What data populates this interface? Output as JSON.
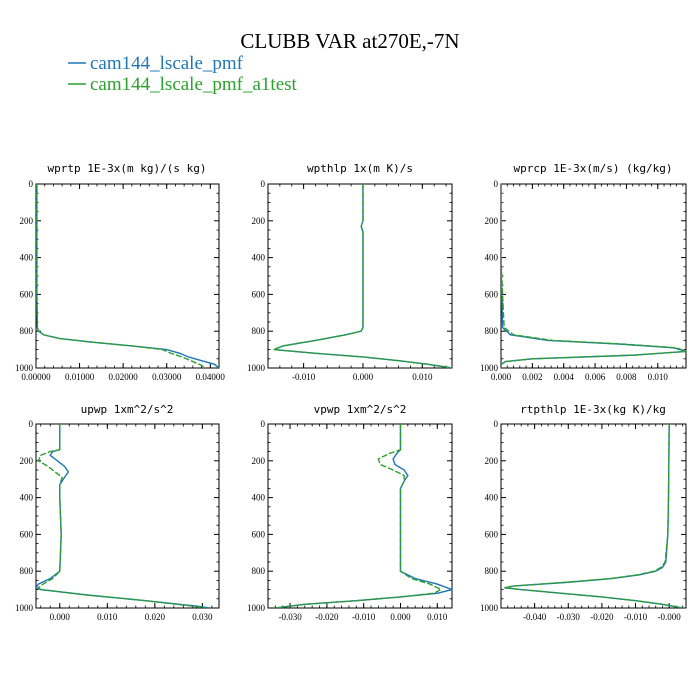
{
  "title": "CLUBB VAR at270E,-7N",
  "legend": [
    {
      "label": "cam144_lscale_pmf",
      "color": "#1f77b4",
      "dash": "solid"
    },
    {
      "label": "cam144_lscale_pmf_a1test",
      "color": "#2ca02c",
      "dash": "dashed"
    }
  ],
  "chart_data": [
    {
      "type": "line",
      "title": "wprtp  1E-3x(m kg)/(s kg)",
      "xlim": [
        0.0,
        0.042
      ],
      "ylim": [
        1000,
        0
      ],
      "xticks": [
        0.0,
        0.01,
        0.02,
        0.03,
        0.04
      ],
      "xtick_labels": [
        "0.00000",
        "0.01000",
        "0.02000",
        "0.03000",
        "0.04000"
      ],
      "yticks": [
        0,
        200,
        400,
        600,
        800,
        1000
      ],
      "ytick_labels": [
        "0",
        "200",
        "400",
        "600",
        "800",
        "1000"
      ],
      "y": [
        0,
        200,
        400,
        600,
        780,
        800,
        820,
        840,
        860,
        880,
        900,
        920,
        940,
        960,
        980,
        1000
      ],
      "series": [
        {
          "name": "cam144_lscale_pmf",
          "x": [
            0.0002,
            0.0002,
            0.0002,
            0.0002,
            0.0003,
            0.0006,
            0.0018,
            0.0055,
            0.013,
            0.022,
            0.03,
            0.033,
            0.035,
            0.038,
            0.041,
            0.042
          ]
        },
        {
          "name": "cam144_lscale_pmf_a1test",
          "x": [
            0.0002,
            0.0002,
            0.0002,
            0.0002,
            0.0003,
            0.0006,
            0.0018,
            0.0055,
            0.013,
            0.022,
            0.029,
            0.031,
            0.0335,
            0.0355,
            0.0375,
            0.039
          ]
        }
      ]
    },
    {
      "type": "line",
      "title": "wpthlp  1x(m K)/s",
      "xlim": [
        -0.016,
        0.015
      ],
      "ylim": [
        1000,
        0
      ],
      "xticks": [
        -0.01,
        0.0,
        0.01
      ],
      "xtick_labels": [
        "-0.010",
        "0.000",
        "0.010"
      ],
      "yticks": [
        0,
        200,
        400,
        600,
        800,
        1000
      ],
      "ytick_labels": [
        "0",
        "200",
        "400",
        "600",
        "800",
        "1000"
      ],
      "y": [
        0,
        200,
        230,
        260,
        400,
        600,
        780,
        800,
        820,
        850,
        880,
        900,
        920,
        940,
        960,
        980,
        1000
      ],
      "series": [
        {
          "name": "cam144_lscale_pmf",
          "x": [
            0.0,
            0.0,
            -0.0003,
            0.0,
            0.0,
            0.0,
            0.0,
            -0.0003,
            -0.003,
            -0.008,
            -0.0135,
            -0.015,
            -0.008,
            0.0,
            0.006,
            0.011,
            0.015
          ]
        },
        {
          "name": "cam144_lscale_pmf_a1test",
          "x": [
            0.0,
            0.0,
            -0.0003,
            0.0,
            0.0,
            0.0,
            0.0,
            -0.0003,
            -0.003,
            -0.008,
            -0.0135,
            -0.015,
            -0.008,
            0.0,
            0.006,
            0.011,
            0.015
          ]
        }
      ]
    },
    {
      "type": "line",
      "title": "wprcp  1E-3x(m/s) (kg/kg)",
      "xlim": [
        0.0,
        0.0118
      ],
      "ylim": [
        1000,
        0
      ],
      "xticks": [
        0.0,
        0.002,
        0.004,
        0.006,
        0.008,
        0.01
      ],
      "xtick_labels": [
        "0.000",
        "0.002",
        "0.004",
        "0.006",
        "0.008",
        "0.010"
      ],
      "yticks": [
        0,
        200,
        400,
        600,
        800,
        1000
      ],
      "ytick_labels": [
        "0",
        "200",
        "400",
        "600",
        "800",
        "1000"
      ],
      "y": [
        0,
        200,
        400,
        600,
        780,
        820,
        850,
        870,
        890,
        910,
        930,
        950,
        965,
        980,
        1000
      ],
      "series": [
        {
          "name": "cam144_lscale_pmf",
          "x": [
            0.0,
            0.0,
            0.0,
            5e-05,
            0.0001,
            0.0006,
            0.003,
            0.0075,
            0.011,
            0.0118,
            0.0085,
            0.002,
            0.0003,
            0.0,
            0.0
          ]
        },
        {
          "name": "cam144_lscale_pmf_a1test",
          "x": [
            0.0,
            0.0,
            0.0,
            0.0001,
            0.0002,
            0.0008,
            0.0033,
            0.0078,
            0.0112,
            0.0118,
            0.0085,
            0.002,
            0.0003,
            0.0,
            0.0
          ]
        }
      ]
    },
    {
      "type": "line",
      "title": "upwp  1xm^2/s^2",
      "xlim": [
        -0.005,
        0.0335
      ],
      "ylim": [
        1000,
        0
      ],
      "xticks": [
        0.0,
        0.01,
        0.02,
        0.03
      ],
      "xtick_labels": [
        "0.000",
        "0.010",
        "0.020",
        "0.030"
      ],
      "yticks": [
        0,
        200,
        400,
        600,
        800,
        1000
      ],
      "ytick_labels": [
        "0",
        "200",
        "400",
        "600",
        "800",
        "1000"
      ],
      "y": [
        0,
        140,
        150,
        170,
        200,
        230,
        260,
        290,
        330,
        400,
        600,
        800,
        840,
        870,
        890,
        900,
        930,
        960,
        990,
        1000
      ],
      "series": [
        {
          "name": "cam144_lscale_pmf",
          "x": [
            0.0,
            0.0,
            -0.0015,
            -0.002,
            -0.0005,
            0.001,
            0.0018,
            0.001,
            0.0,
            0.0,
            0.0003,
            0.0,
            -0.002,
            -0.0045,
            -0.005,
            -0.004,
            0.006,
            0.018,
            0.029,
            0.0315
          ]
        },
        {
          "name": "cam144_lscale_pmf_a1test",
          "x": [
            0.0,
            0.0,
            -0.002,
            -0.004,
            -0.0045,
            -0.0025,
            -0.001,
            0.0005,
            0.0,
            0.0,
            0.0003,
            0.0,
            -0.0015,
            -0.0035,
            -0.0045,
            -0.004,
            0.006,
            0.018,
            0.028,
            0.0305
          ]
        }
      ]
    },
    {
      "type": "line",
      "title": "vpwp  1xm^2/s^2",
      "xlim": [
        -0.036,
        0.014
      ],
      "ylim": [
        1000,
        0
      ],
      "xticks": [
        -0.03,
        -0.02,
        -0.01,
        0.0,
        0.01
      ],
      "xtick_labels": [
        "-0.030",
        "-0.020",
        "-0.010",
        "0.000",
        "0.010"
      ],
      "yticks": [
        0,
        200,
        400,
        600,
        800,
        1000
      ],
      "ytick_labels": [
        "0",
        "200",
        "400",
        "600",
        "800",
        "1000"
      ],
      "y": [
        0,
        140,
        160,
        190,
        220,
        250,
        280,
        310,
        350,
        420,
        600,
        800,
        840,
        870,
        900,
        920,
        940,
        960,
        980,
        1000
      ],
      "series": [
        {
          "name": "cam144_lscale_pmf",
          "x": [
            0.0,
            0.0,
            -0.001,
            -0.002,
            -0.0015,
            0.001,
            0.002,
            0.001,
            0.0,
            0.0,
            0.0,
            0.0,
            0.004,
            0.01,
            0.014,
            0.01,
            0.0,
            -0.012,
            -0.026,
            -0.034
          ]
        },
        {
          "name": "cam144_lscale_pmf_a1test",
          "x": [
            0.0,
            0.0,
            -0.003,
            -0.006,
            -0.0055,
            -0.002,
            0.001,
            0.001,
            0.0,
            0.0,
            0.0,
            0.0,
            0.003,
            0.008,
            0.011,
            0.009,
            0.0,
            -0.012,
            -0.026,
            -0.034
          ]
        }
      ]
    },
    {
      "type": "line",
      "title": "rtpthlp  1E-3x(kg K)/kg",
      "xlim": [
        -0.05,
        0.005
      ],
      "ylim": [
        1000,
        0
      ],
      "xticks": [
        -0.04,
        -0.03,
        -0.02,
        -0.01,
        0.0
      ],
      "xtick_labels": [
        "-0.040",
        "-0.030",
        "-0.020",
        "-0.010",
        "-0.000"
      ],
      "yticks": [
        0,
        200,
        400,
        600,
        800,
        1000
      ],
      "ytick_labels": [
        "0",
        "200",
        "400",
        "600",
        "800",
        "1000"
      ],
      "y": [
        0,
        200,
        400,
        600,
        750,
        780,
        800,
        820,
        840,
        860,
        880,
        890,
        900,
        920,
        940,
        960,
        980,
        1000
      ],
      "series": [
        {
          "name": "cam144_lscale_pmf",
          "x": [
            0.0,
            -0.0001,
            -0.0002,
            -0.0004,
            -0.001,
            -0.002,
            -0.004,
            -0.009,
            -0.017,
            -0.03,
            -0.046,
            -0.049,
            -0.044,
            -0.032,
            -0.02,
            -0.01,
            -0.002,
            0.004
          ]
        },
        {
          "name": "cam144_lscale_pmf_a1test",
          "x": [
            0.0,
            -0.0001,
            -0.0002,
            -0.0004,
            -0.0012,
            -0.0025,
            -0.0045,
            -0.0095,
            -0.0175,
            -0.0305,
            -0.046,
            -0.049,
            -0.044,
            -0.032,
            -0.02,
            -0.01,
            -0.002,
            0.004
          ]
        }
      ]
    }
  ]
}
